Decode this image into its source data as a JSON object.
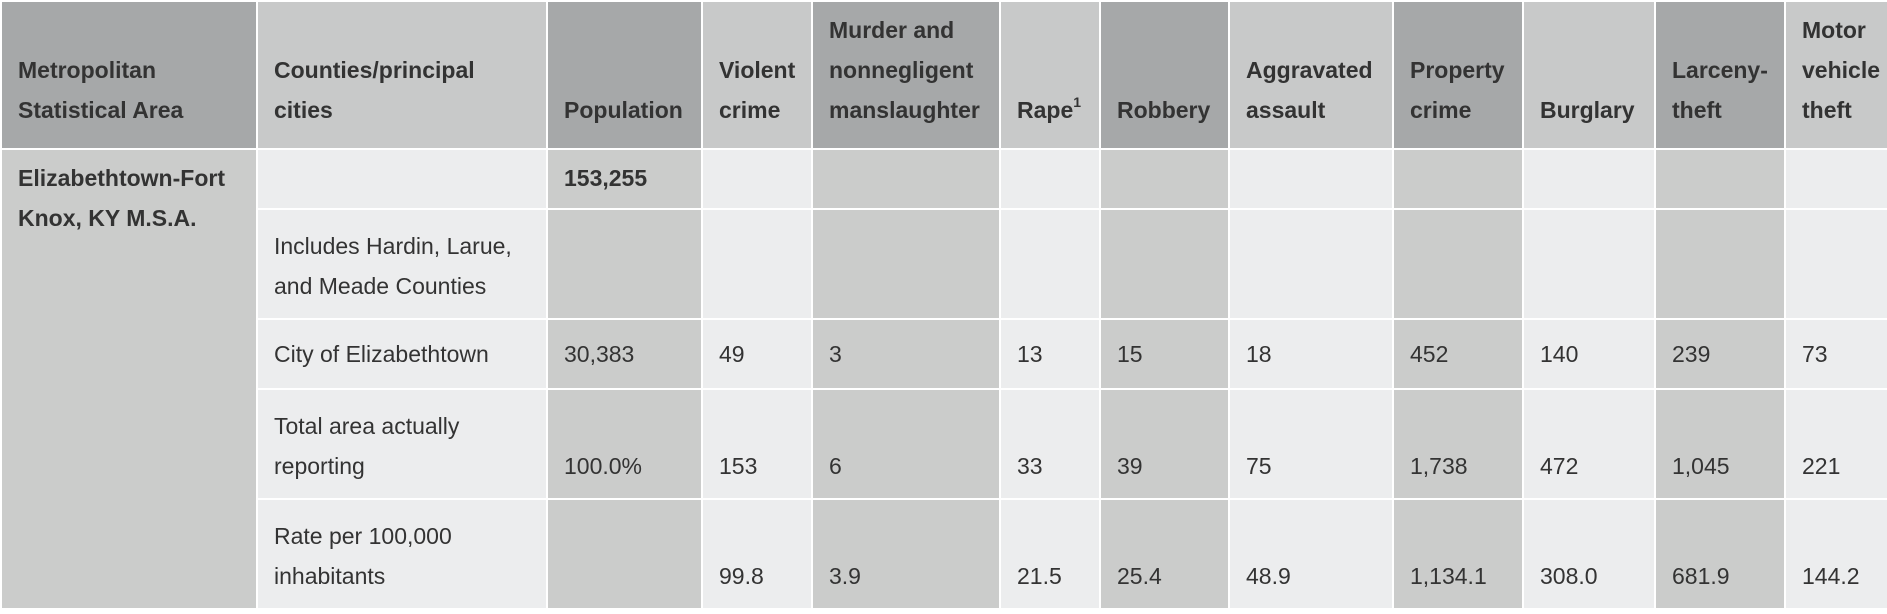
{
  "headers": {
    "msa": "Metropolitan Statistical Area",
    "counties": "Counties/principal cities",
    "population": "Population",
    "violent_crime": "Violent crime",
    "murder": "Murder and nonnegligent manslaughter",
    "rape": "Rape",
    "rape_footnote": "1",
    "robbery": "Robbery",
    "aggravated_assault": "Aggravated assault",
    "property_crime": "Property crime",
    "burglary": "Burglary",
    "larceny_theft": "Larceny-theft",
    "motor_vehicle_theft": "Motor vehicle theft"
  },
  "msa": {
    "name": "Elizabethtown-Fort Knox, KY M.S.A.",
    "population": "153,255"
  },
  "rows": [
    {
      "label": "Includes Hardin, Larue, and Meade Counties",
      "population": "",
      "violent_crime": "",
      "murder": "",
      "rape": "",
      "robbery": "",
      "aggravated_assault": "",
      "property_crime": "",
      "burglary": "",
      "larceny_theft": "",
      "motor_vehicle_theft": ""
    },
    {
      "label": "City of Elizabethtown",
      "population": "30,383",
      "violent_crime": "49",
      "murder": "3",
      "rape": "13",
      "robbery": "15",
      "aggravated_assault": "18",
      "property_crime": "452",
      "burglary": "140",
      "larceny_theft": "239",
      "motor_vehicle_theft": "73"
    },
    {
      "label": "Total area actually reporting",
      "population": "100.0%",
      "violent_crime": "153",
      "murder": "6",
      "rape": "33",
      "robbery": "39",
      "aggravated_assault": "75",
      "property_crime": "1,738",
      "burglary": "472",
      "larceny_theft": "1,045",
      "motor_vehicle_theft": "221"
    },
    {
      "label": "Rate per 100,000 inhabitants",
      "population": "",
      "violent_crime": "99.8",
      "murder": "3.9",
      "rape": "21.5",
      "robbery": "25.4",
      "aggravated_assault": "48.9",
      "property_crime": "1,134.1",
      "burglary": "308.0",
      "larceny_theft": "681.9",
      "motor_vehicle_theft": "144.2"
    }
  ]
}
